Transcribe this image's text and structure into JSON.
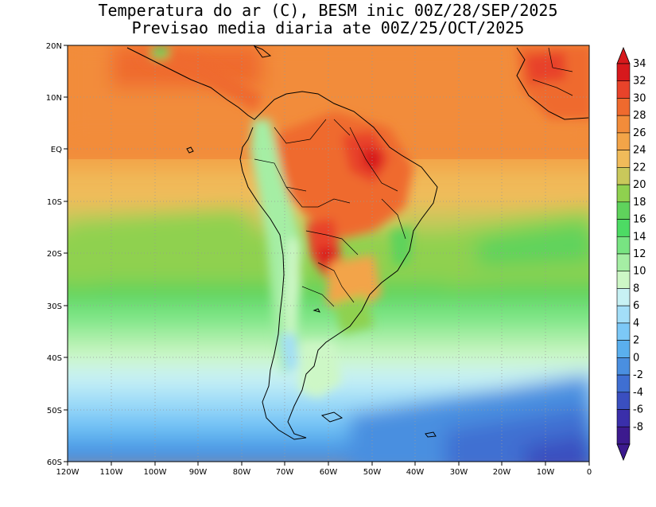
{
  "title_line1": "Temperatura do ar (C), BESM inic 00Z/28/SEP/2025",
  "title_line2": "Previsao media diaria ate 00Z/25/OCT/2025",
  "lat_labels": [
    "20N",
    "10N",
    "EQ",
    "10S",
    "20S",
    "30S",
    "40S",
    "50S",
    "60S"
  ],
  "lon_labels": [
    "120W",
    "110W",
    "100W",
    "90W",
    "80W",
    "70W",
    "60W",
    "50W",
    "40W",
    "30W",
    "20W",
    "10W",
    "0"
  ],
  "colorbar": {
    "labels": [
      "34",
      "32",
      "30",
      "28",
      "26",
      "24",
      "22",
      "20",
      "18",
      "16",
      "14",
      "12",
      "10",
      "8",
      "6",
      "4",
      "2",
      "0",
      "-2",
      "-4",
      "-6",
      "-8"
    ],
    "colors": [
      "#d7191c",
      "#e8432a",
      "#ef6a2e",
      "#f28c3a",
      "#f3a448",
      "#f0bb5a",
      "#c9c85b",
      "#8fd14f",
      "#5fd35c",
      "#4ddb64",
      "#78e482",
      "#a5eea4",
      "#cdf7c6",
      "#c7f1f4",
      "#a3def8",
      "#7cc8f7",
      "#5aafee",
      "#4a8fe0",
      "#3f6fd2",
      "#3a4fc0",
      "#3a2faa",
      "#3c1a8e"
    ]
  }
}
